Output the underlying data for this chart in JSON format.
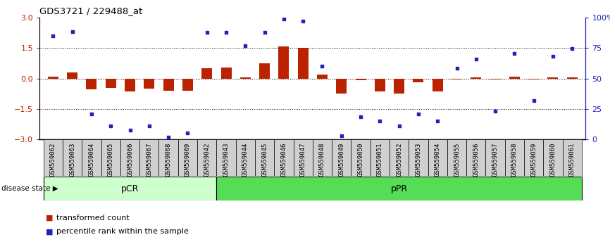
{
  "title": "GDS3721 / 229488_at",
  "samples": [
    "GSM559062",
    "GSM559063",
    "GSM559064",
    "GSM559065",
    "GSM559066",
    "GSM559067",
    "GSM559068",
    "GSM559069",
    "GSM559042",
    "GSM559043",
    "GSM559044",
    "GSM559045",
    "GSM559046",
    "GSM559047",
    "GSM559048",
    "GSM559049",
    "GSM559050",
    "GSM559051",
    "GSM559052",
    "GSM559053",
    "GSM559054",
    "GSM559055",
    "GSM559056",
    "GSM559057",
    "GSM559058",
    "GSM559059",
    "GSM559060",
    "GSM559061"
  ],
  "bar_values": [
    0.1,
    0.3,
    -0.55,
    -0.45,
    -0.65,
    -0.5,
    -0.6,
    -0.6,
    0.5,
    0.55,
    0.05,
    0.75,
    1.57,
    1.52,
    0.18,
    -0.75,
    -0.1,
    -0.65,
    -0.75,
    -0.18,
    -0.65,
    -0.05,
    0.05,
    -0.05,
    0.1,
    -0.05,
    0.05,
    0.05
  ],
  "scatter_values": [
    2.1,
    2.3,
    -1.75,
    -2.35,
    -2.55,
    -2.35,
    -2.88,
    -2.68,
    2.28,
    2.28,
    1.62,
    2.28,
    2.94,
    2.82,
    0.62,
    -2.82,
    -1.88,
    -2.08,
    -2.35,
    -1.75,
    -2.08,
    0.5,
    0.95,
    -1.62,
    1.22,
    -1.08,
    1.08,
    1.48
  ],
  "pcr_count": 9,
  "ppr_count": 19,
  "bar_color": "#bb2200",
  "scatter_color": "#2222bb",
  "ylim": [
    -3,
    3
  ],
  "yticks_left": [
    -3,
    -1.5,
    0,
    1.5,
    3
  ],
  "yticks_right_vals": [
    0,
    25,
    50,
    75,
    100
  ],
  "dotted_lines": [
    -1.5,
    0,
    1.5
  ],
  "pcr_color": "#ccffcc",
  "ppr_color": "#55dd55",
  "disease_state_label": "disease state",
  "pcr_label": "pCR",
  "ppr_label": "pPR",
  "legend_bar_label": "transformed count",
  "legend_scatter_label": "percentile rank within the sample"
}
